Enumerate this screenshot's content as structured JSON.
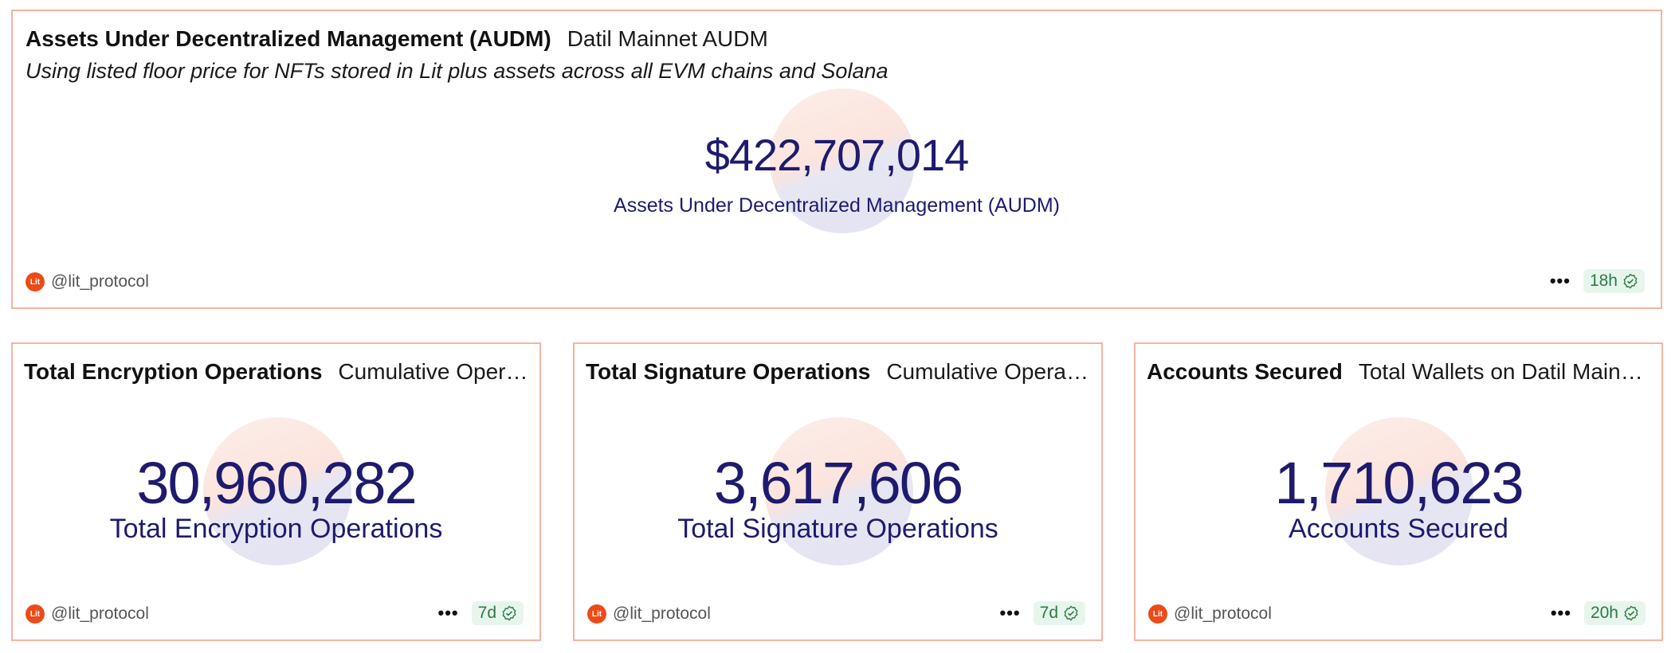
{
  "audm": {
    "title": "Assets Under Decentralized Management (AUDM)",
    "subtitle": "Datil Mainnet AUDM",
    "description": "Using listed floor price for NFTs stored in Lit plus assets across all EVM chains and Solana",
    "value": "$422,707,014",
    "label": "Assets Under Decentralized Management (AUDM)",
    "author": "@lit_protocol",
    "age": "18h"
  },
  "encryption": {
    "title": "Total Encryption Operations",
    "subtitle": "Cumulative Opera...",
    "value": "30,960,282",
    "label": "Total Encryption Operations",
    "author": "@lit_protocol",
    "age": "7d"
  },
  "signature": {
    "title": "Total Signature Operations",
    "subtitle": "Cumulative Operati...",
    "value": "3,617,606",
    "label": "Total Signature Operations",
    "author": "@lit_protocol",
    "age": "7d"
  },
  "accounts": {
    "title": "Accounts Secured",
    "subtitle": "Total Wallets on Datil Mainn...",
    "value": "1,710,623",
    "label": "Accounts Secured",
    "author": "@lit_protocol",
    "age": "20h"
  },
  "logo_text": "Lit",
  "more_glyph": "•••",
  "colors": {
    "card_border": "#f5b3a0",
    "value_text": "#1e1b6e",
    "badge_bg": "#e7f6ec",
    "badge_text": "#2e7a46",
    "logo_bg": "#ec4b18"
  }
}
